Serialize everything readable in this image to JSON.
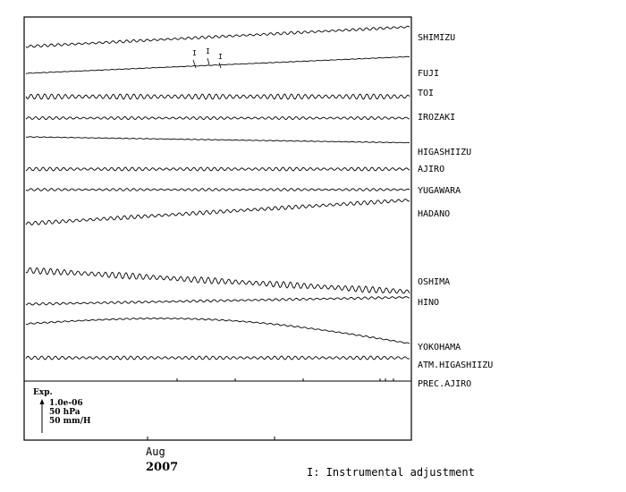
{
  "chart_data": {
    "type": "line",
    "title": "",
    "xlabel": "",
    "ylabel": "",
    "x_tick_labels": [
      "Aug"
    ],
    "x_year_label": "2007",
    "scale_legend": {
      "title": "Exp.",
      "lines": [
        "1.0e-06",
        "50 hPa",
        "50 mm/H"
      ]
    },
    "note": "I: Instrumental adjustment",
    "adjustment_marker": "I",
    "series": [
      {
        "name": "SHIMIZU",
        "start": 0.0,
        "end": 1.0,
        "ripple": 1.5,
        "curve": 0.0
      },
      {
        "name": "FUJI",
        "start": 0.0,
        "end": 0.85,
        "ripple": 0.3,
        "curve": 0.0
      },
      {
        "name": "TOI",
        "start": 0.0,
        "end": 0.0,
        "ripple": 3.0,
        "curve": 0.0
      },
      {
        "name": "IROZAKI",
        "start": 0.0,
        "end": 0.0,
        "ripple": 1.6,
        "curve": 0.0
      },
      {
        "name": "HIGASHIIZU",
        "start": 0.0,
        "end": -0.3,
        "ripple": 0.4,
        "curve": 0.0
      },
      {
        "name": "AJIRO",
        "start": 0.0,
        "end": 0.0,
        "ripple": 2.0,
        "curve": 0.0
      },
      {
        "name": "YUGAWARA",
        "start": 0.0,
        "end": 0.0,
        "ripple": 1.4,
        "curve": 0.0
      },
      {
        "name": "HADANO",
        "start": 0.0,
        "end": 1.2,
        "ripple": 2.2,
        "curve": 0.0
      },
      {
        "name": "OSHIMA",
        "start": 0.0,
        "end": -1.1,
        "ripple": 3.5,
        "curve": 0.0
      },
      {
        "name": "HINO",
        "start": 0.0,
        "end": 0.35,
        "ripple": 1.3,
        "curve": 0.0
      },
      {
        "name": "YOKOHAMA",
        "start": 0.0,
        "end": -1.0,
        "ripple": 0.8,
        "curve": 0.7
      },
      {
        "name": "ATM.HIGASHIIZU",
        "start": 0.0,
        "end": 0.0,
        "ripple": 2.0,
        "curve": 0.0
      },
      {
        "name": "PREC.AJIRO",
        "start": 0.0,
        "end": 0.0,
        "ripple": 0.0,
        "curve": 0.0
      }
    ]
  }
}
